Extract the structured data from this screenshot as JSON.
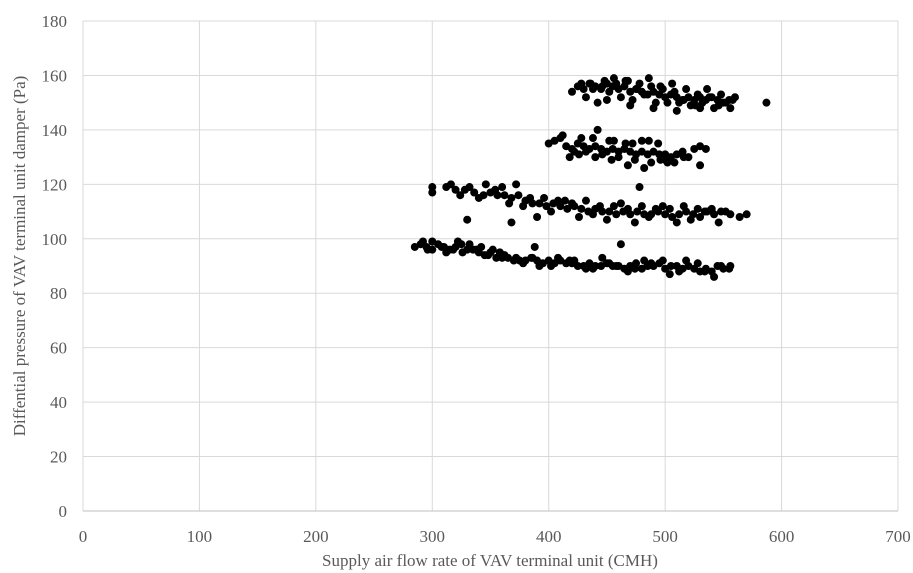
{
  "chart_data": {
    "type": "scatter",
    "title": "",
    "xlabel": "Supply  air flow rate of VAV terminal unit (CMH)",
    "ylabel": "Diffential pressure of VAV terminal unit damper (Pa)",
    "xlim": [
      0,
      700
    ],
    "ylim": [
      0,
      180
    ],
    "x_ticks": [
      0,
      100,
      200,
      300,
      400,
      500,
      600,
      700
    ],
    "y_ticks": [
      0,
      20,
      40,
      60,
      80,
      100,
      120,
      140,
      160,
      180
    ],
    "x_tick_labels": [
      "0",
      "100",
      "200",
      "300",
      "400",
      "500",
      "600",
      "700"
    ],
    "y_tick_labels": [
      "0",
      "20",
      "40",
      "60",
      "80",
      "100",
      "120",
      "140",
      "160",
      "180"
    ],
    "grid": true,
    "marker_color": "#000000",
    "series": [
      {
        "x": [
          285,
          290,
          295,
          300,
          305,
          310,
          315,
          320,
          325,
          330,
          335,
          340,
          345,
          350,
          355,
          360,
          365,
          370,
          375,
          380,
          385,
          390,
          395,
          400,
          405,
          410,
          415,
          420,
          425,
          430,
          435,
          440,
          445,
          450,
          455,
          460,
          465,
          470,
          475,
          480,
          485,
          490,
          495,
          500,
          505,
          510,
          515,
          520,
          525,
          530,
          535,
          540,
          545,
          550,
          555,
          300,
          312,
          322,
          338,
          348,
          388,
          462,
          292,
          318,
          332,
          352,
          362,
          378,
          392,
          408,
          422,
          438,
          452,
          468,
          482,
          498,
          512,
          528,
          542,
          556,
          296,
          308,
          326,
          342,
          358,
          372,
          386,
          402,
          418,
          432,
          446,
          458,
          474,
          488,
          504,
          518,
          534,
          548
        ],
        "y": [
          97,
          98,
          97,
          96,
          98,
          97,
          96,
          97,
          98,
          96,
          96,
          95,
          94,
          95,
          93,
          93,
          93,
          92,
          92,
          92,
          93,
          92,
          91,
          92,
          91,
          92,
          91,
          91,
          90,
          90,
          91,
          90,
          90,
          91,
          90,
          90,
          89,
          90,
          91,
          89,
          90,
          90,
          91,
          89,
          90,
          90,
          89,
          90,
          89,
          88,
          89,
          88,
          90,
          89,
          89,
          99,
          95,
          99,
          96,
          94,
          97,
          98,
          99,
          96,
          98,
          96,
          94,
          91,
          90,
          93,
          92,
          89,
          91,
          88,
          92,
          92,
          88,
          91,
          86,
          90,
          96,
          97,
          95,
          97,
          95,
          93,
          93,
          90,
          92,
          89,
          93,
          90,
          89,
          91,
          87,
          92,
          88,
          90
        ]
      },
      {
        "x": [
          300,
          312,
          320,
          328,
          336,
          344,
          350,
          356,
          362,
          368,
          374,
          380,
          386,
          392,
          398,
          404,
          410,
          416,
          422,
          428,
          434,
          440,
          446,
          452,
          458,
          464,
          470,
          476,
          482,
          488,
          494,
          500,
          506,
          512,
          518,
          524,
          530,
          536,
          542,
          548,
          556,
          564,
          570,
          300,
          316,
          332,
          346,
          360,
          372,
          384,
          396,
          408,
          420,
          432,
          444,
          456,
          468,
          480,
          492,
          504,
          516,
          528,
          540,
          552,
          330,
          368,
          478,
          324,
          340,
          354,
          366,
          378,
          390,
          402,
          414,
          426,
          438,
          450,
          462,
          474,
          486,
          498,
          510,
          522,
          534,
          546
        ],
        "y": [
          117,
          119,
          118,
          118,
          117,
          116,
          117,
          116,
          116,
          115,
          116,
          114,
          113,
          113,
          112,
          113,
          112,
          111,
          112,
          111,
          110,
          111,
          110,
          110,
          109,
          110,
          109,
          110,
          109,
          109,
          110,
          109,
          108,
          109,
          110,
          109,
          108,
          110,
          109,
          110,
          109,
          108,
          109,
          119,
          120,
          119,
          120,
          119,
          120,
          115,
          115,
          114,
          113,
          114,
          112,
          112,
          111,
          112,
          111,
          111,
          112,
          111,
          111,
          110,
          107,
          106,
          119,
          116,
          115,
          118,
          113,
          112,
          108,
          110,
          114,
          108,
          109,
          107,
          113,
          106,
          108,
          112,
          106,
          107,
          110,
          106
        ]
      },
      {
        "x": [
          400,
          405,
          410,
          415,
          420,
          425,
          430,
          435,
          440,
          445,
          450,
          455,
          460,
          465,
          470,
          475,
          480,
          485,
          490,
          495,
          500,
          505,
          510,
          515,
          520,
          525,
          530,
          535,
          412,
          428,
          442,
          456,
          472,
          486,
          500,
          418,
          432,
          446,
          460,
          474,
          488,
          502,
          516,
          530,
          422,
          438,
          452,
          466,
          480,
          494,
          508,
          426,
          440,
          454,
          468,
          482,
          496
        ],
        "y": [
          135,
          136,
          137,
          134,
          133,
          135,
          134,
          133,
          134,
          133,
          132,
          133,
          132,
          133,
          132,
          131,
          132,
          131,
          132,
          131,
          131,
          130,
          131,
          132,
          130,
          133,
          134,
          133,
          138,
          137,
          140,
          136,
          135,
          136,
          129,
          130,
          132,
          131,
          130,
          129,
          128,
          128,
          130,
          127,
          132,
          137,
          136,
          135,
          136,
          135,
          128,
          131,
          130,
          129,
          127,
          126,
          129
        ]
      },
      {
        "x": [
          420,
          425,
          430,
          435,
          440,
          445,
          450,
          455,
          460,
          465,
          470,
          475,
          480,
          485,
          490,
          495,
          500,
          505,
          510,
          515,
          520,
          525,
          530,
          535,
          540,
          545,
          550,
          555,
          560,
          587,
          428,
          438,
          448,
          458,
          468,
          478,
          488,
          498,
          508,
          518,
          528,
          538,
          548,
          558,
          432,
          442,
          452,
          462,
          472,
          482,
          492,
          502,
          512,
          522,
          532,
          542,
          552,
          436,
          446,
          456,
          466,
          476,
          486,
          496,
          506,
          516,
          526,
          536,
          546,
          556,
          450,
          470,
          490,
          510,
          530
        ],
        "y": [
          154,
          156,
          155,
          157,
          156,
          155,
          157,
          156,
          155,
          156,
          154,
          155,
          154,
          153,
          154,
          153,
          152,
          153,
          152,
          151,
          152,
          151,
          152,
          151,
          152,
          151,
          150,
          151,
          152,
          150,
          157,
          155,
          158,
          157,
          158,
          157,
          156,
          155,
          154,
          155,
          153,
          152,
          153,
          151,
          152,
          150,
          154,
          152,
          151,
          153,
          150,
          150,
          150,
          149,
          150,
          148,
          150,
          157,
          156,
          159,
          158,
          155,
          159,
          156,
          157,
          151,
          149,
          155,
          149,
          148,
          151,
          149,
          148,
          147,
          148
        ]
      }
    ]
  }
}
